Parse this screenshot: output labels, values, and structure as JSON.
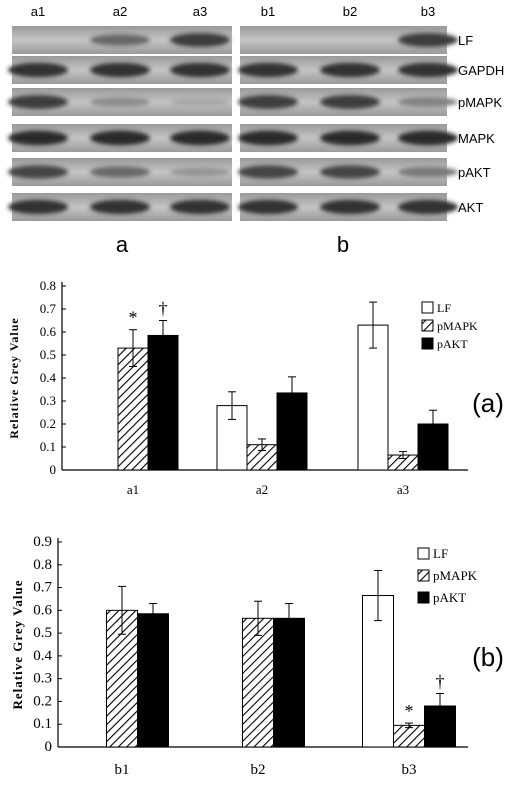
{
  "blot": {
    "lanes_a": [
      "a1",
      "a2",
      "a3"
    ],
    "lanes_b": [
      "b1",
      "b2",
      "b3"
    ],
    "rows": [
      "LF",
      "GAPDH",
      "pMAPK",
      "MAPK",
      "pAKT",
      "AKT"
    ],
    "group_a": "a",
    "group_b": "b",
    "band_intensity_a": {
      "LF": [
        0.0,
        0.55,
        0.8
      ],
      "GAPDH": [
        0.85,
        0.85,
        0.85
      ],
      "pMAPK": [
        0.8,
        0.35,
        0.2
      ],
      "MAPK": [
        0.9,
        0.9,
        0.9
      ],
      "pAKT": [
        0.75,
        0.55,
        0.3
      ],
      "AKT": [
        0.85,
        0.85,
        0.85
      ]
    },
    "band_intensity_b": {
      "LF": [
        0.0,
        0.0,
        0.8
      ],
      "GAPDH": [
        0.85,
        0.85,
        0.85
      ],
      "pMAPK": [
        0.8,
        0.8,
        0.4
      ],
      "MAPK": [
        0.9,
        0.9,
        0.9
      ],
      "pAKT": [
        0.75,
        0.75,
        0.45
      ],
      "AKT": [
        0.85,
        0.85,
        0.85
      ]
    }
  },
  "chart_data": [
    {
      "type": "bar",
      "panel_label": "(a)",
      "categories": [
        "a1",
        "a2",
        "a3"
      ],
      "ylabel": "Relative Grey Value",
      "ylim": [
        0,
        0.8
      ],
      "yticks": [
        "0",
        "0.1",
        "0.2",
        "0.3",
        "0.4",
        "0.5",
        "0.6",
        "0.7",
        "0.8"
      ],
      "legend_position": "top-right",
      "series": [
        {
          "name": "LF",
          "fill": "white",
          "values": [
            null,
            0.28,
            0.63
          ],
          "errors": [
            null,
            0.06,
            0.1
          ]
        },
        {
          "name": "pMAPK",
          "fill": "hatched",
          "values": [
            0.53,
            0.11,
            0.065
          ],
          "errors": [
            0.08,
            0.025,
            0.015
          ]
        },
        {
          "name": "pAKT",
          "fill": "black",
          "values": [
            0.585,
            0.335,
            0.2
          ],
          "errors": [
            0.065,
            0.07,
            0.06
          ]
        }
      ],
      "annotations": [
        {
          "text": "*",
          "category": "a1",
          "series": "pMAPK"
        },
        {
          "text": "†",
          "category": "a1",
          "series": "pAKT"
        }
      ]
    },
    {
      "type": "bar",
      "panel_label": "(b)",
      "categories": [
        "b1",
        "b2",
        "b3"
      ],
      "ylabel": "Relative Grey Value",
      "ylim": [
        0,
        0.9
      ],
      "yticks": [
        "0",
        "0.1",
        "0.2",
        "0.3",
        "0.4",
        "0.5",
        "0.6",
        "0.7",
        "0.8",
        "0.9"
      ],
      "legend_position": "top-right",
      "series": [
        {
          "name": "LF",
          "fill": "white",
          "values": [
            null,
            null,
            0.665
          ],
          "errors": [
            null,
            null,
            0.11
          ]
        },
        {
          "name": "pMAPK",
          "fill": "hatched",
          "values": [
            0.6,
            0.565,
            0.095
          ],
          "errors": [
            0.105,
            0.075,
            0.01
          ]
        },
        {
          "name": "pAKT",
          "fill": "black",
          "values": [
            0.585,
            0.565,
            0.18
          ],
          "errors": [
            0.045,
            0.065,
            0.055
          ]
        }
      ],
      "annotations": [
        {
          "text": "*",
          "category": "b3",
          "series": "pMAPK"
        },
        {
          "text": "†",
          "category": "b3",
          "series": "pAKT"
        }
      ]
    }
  ]
}
